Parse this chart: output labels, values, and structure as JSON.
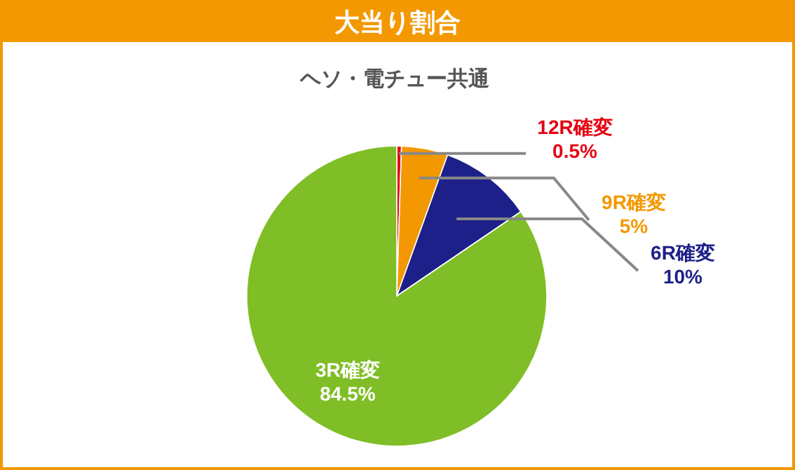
{
  "chart_data": {
    "type": "pie",
    "title": "大当り割合",
    "subtitle": "ヘソ・電チュー共通",
    "categories": [
      "12R確変",
      "9R確変",
      "6R確変",
      "3R確変"
    ],
    "values": [
      0.5,
      5,
      10,
      84.5
    ],
    "colors": [
      "#e60012",
      "#f39800",
      "#1d2088",
      "#7fbe26"
    ],
    "value_labels": [
      "0.5%",
      "5%",
      "10%",
      "84.5%"
    ]
  }
}
